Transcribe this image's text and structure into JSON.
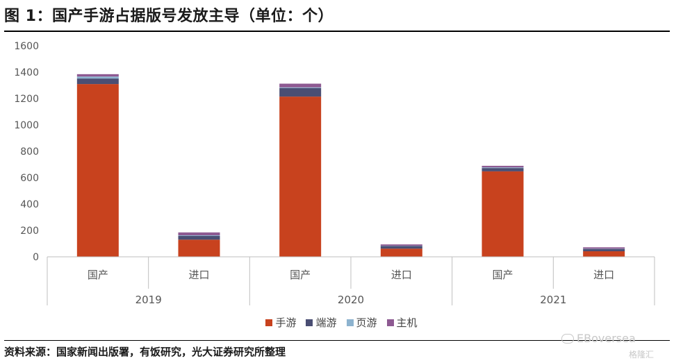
{
  "page": {
    "title": "图 1：国产手游占据版号发放主导（单位：个）",
    "source": "资料来源：国家新闻出版署，有饭研究，光大证券研究所整理",
    "watermark": "EBoversea",
    "watermark_sub": "格隆汇"
  },
  "chart_data": {
    "type": "bar",
    "stacked": true,
    "title": "",
    "xlabel": "",
    "ylabel": "",
    "ylim": [
      0,
      1600
    ],
    "yticks": [
      0,
      200,
      400,
      600,
      800,
      1000,
      1200,
      1400,
      1600
    ],
    "grid": false,
    "legend_position": "bottom",
    "categories": [
      "国产",
      "进口",
      "国产",
      "进口",
      "国产",
      "进口"
    ],
    "groups": [
      {
        "label": "2019",
        "categories": [
          "国产",
          "进口"
        ]
      },
      {
        "label": "2020",
        "categories": [
          "国产",
          "进口"
        ]
      },
      {
        "label": "2021",
        "categories": [
          "国产",
          "进口"
        ]
      }
    ],
    "series": [
      {
        "name": "手游",
        "color": "#C8421E",
        "values": [
          1310,
          130,
          1215,
          62,
          648,
          42
        ]
      },
      {
        "name": "端游",
        "color": "#4A4E73",
        "values": [
          42,
          28,
          65,
          20,
          25,
          18
        ]
      },
      {
        "name": "页游",
        "color": "#8DB3CF",
        "values": [
          15,
          5,
          5,
          2,
          5,
          2
        ]
      },
      {
        "name": "主机",
        "color": "#8E5A92",
        "values": [
          18,
          22,
          28,
          10,
          12,
          10
        ]
      }
    ]
  }
}
